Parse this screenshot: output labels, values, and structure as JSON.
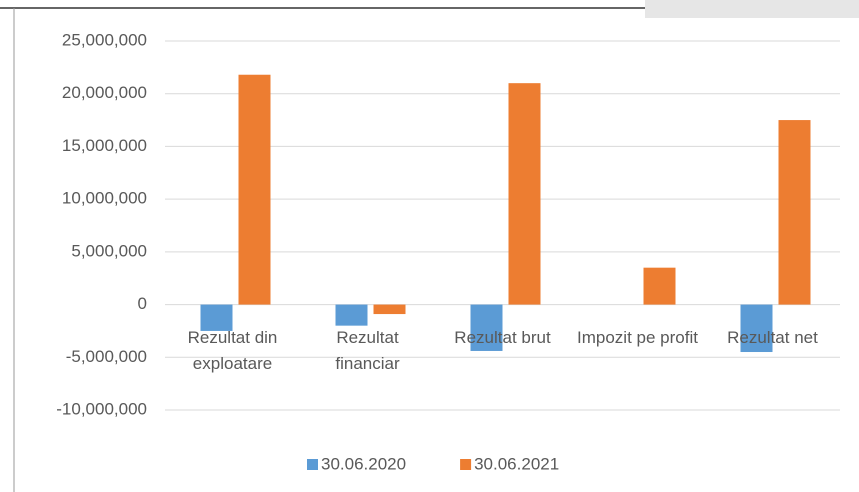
{
  "chart_data": {
    "type": "bar",
    "categories": [
      "Rezultat din exploatare",
      "Rezultat financiar",
      "Rezultat brut",
      "Impozit pe profit",
      "Rezultat net"
    ],
    "series": [
      {
        "name": "30.06.2020",
        "color": "#5b9bd5",
        "values": [
          -2500000,
          -2000000,
          -4400000,
          0,
          -4500000
        ]
      },
      {
        "name": "30.06.2021",
        "color": "#ed7d31",
        "values": [
          21800000,
          -900000,
          21000000,
          3500000,
          17500000
        ]
      }
    ],
    "ylim": [
      -10000000,
      25000000
    ],
    "yticks": [
      {
        "value": -10000000,
        "label": "-10,000,000"
      },
      {
        "value": -5000000,
        "label": "-5,000,000"
      },
      0,
      {
        "value": 5000000,
        "label": "5,000,000"
      },
      {
        "value": 10000000,
        "label": "10,000,000"
      },
      {
        "value": 15000000,
        "label": "15,000,000"
      },
      {
        "value": 20000000,
        "label": "20,000,000"
      },
      {
        "value": 25000000,
        "label": "25,000,000"
      }
    ],
    "grid": true,
    "legend": "bottom"
  }
}
